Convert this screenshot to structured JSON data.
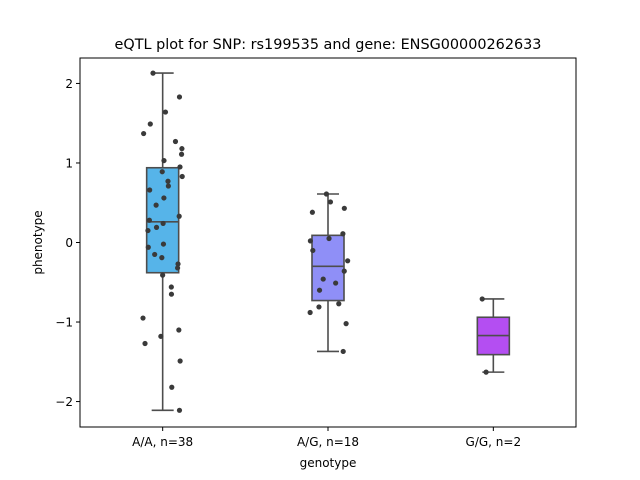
{
  "chart_data": {
    "type": "box",
    "title": "eQTL plot for SNP: rs199535 and gene: ENSG00000262633",
    "xlabel": "genotype",
    "ylabel": "phenotype",
    "ylim": [
      -2.32,
      2.32
    ],
    "yticks": [
      -2,
      -1,
      0,
      1,
      2
    ],
    "ytick_labels": [
      "−2",
      "−1",
      "0",
      "1",
      "2"
    ],
    "grid": false,
    "categories": [
      "A/A, n=38",
      "A/G, n=18",
      "G/G, n=2"
    ],
    "groups": [
      {
        "label": "A/A, n=38",
        "color": "#56b4e9",
        "box": {
          "whisker_low": -2.11,
          "q1": -0.38,
          "median": 0.26,
          "q3": 0.94,
          "whisker_high": 2.13
        },
        "points": [
          2.13,
          1.83,
          1.64,
          1.49,
          1.37,
          1.27,
          1.18,
          1.11,
          1.03,
          0.95,
          0.89,
          0.83,
          0.77,
          0.71,
          0.66,
          0.56,
          0.47,
          0.33,
          0.28,
          0.24,
          0.19,
          0.15,
          -0.02,
          -0.06,
          -0.15,
          -0.19,
          -0.27,
          -0.32,
          -0.41,
          -0.56,
          -0.65,
          -0.95,
          -1.1,
          -1.18,
          -1.27,
          -1.49,
          -1.82,
          -2.11
        ]
      },
      {
        "label": "A/G, n=18",
        "color": "#8f8ff7",
        "box": {
          "whisker_low": -1.37,
          "q1": -0.73,
          "median": -0.3,
          "q3": 0.09,
          "whisker_high": 0.61
        },
        "points": [
          0.61,
          0.51,
          0.43,
          0.38,
          0.11,
          0.05,
          0.02,
          -0.1,
          -0.23,
          -0.36,
          -0.46,
          -0.51,
          -0.6,
          -0.77,
          -0.81,
          -0.88,
          -1.02,
          -1.37
        ]
      },
      {
        "label": "G/G, n=2",
        "color": "#b44ef2",
        "box": {
          "whisker_low": -1.63,
          "q1": -1.41,
          "median": -1.17,
          "q3": -0.94,
          "whisker_high": -0.71
        },
        "points": [
          -0.71,
          -1.63
        ]
      }
    ]
  }
}
